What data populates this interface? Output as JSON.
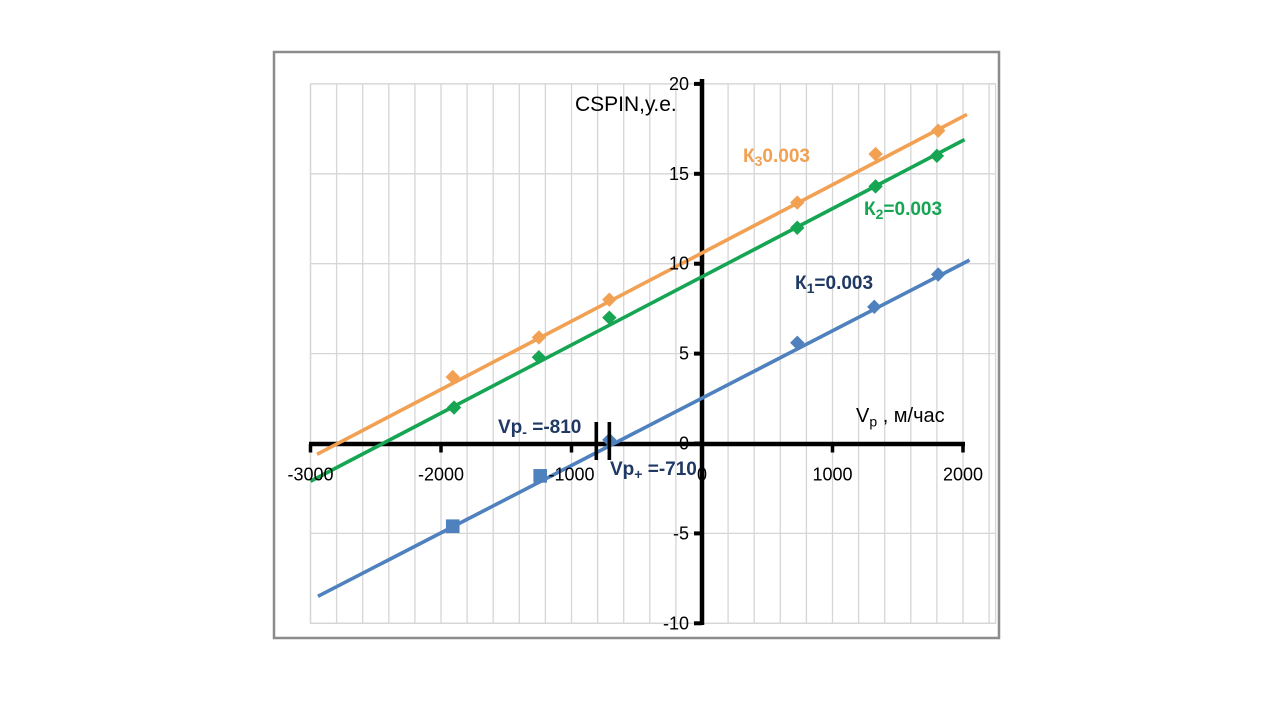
{
  "page": {
    "background": "#FFFFFF"
  },
  "chart_frame": {
    "border_color": "#8C8C8C",
    "fill": "#FFFFFF"
  },
  "chart_data": {
    "type": "scatter",
    "title": "CSPIN,у.е.",
    "ylabel": "CSPIN,у.е.",
    "xlabel_parts": {
      "pre": "V",
      "sub": "p",
      "post": " , м/час"
    },
    "xlim": [
      -3000,
      2250
    ],
    "ylim": [
      -10,
      20
    ],
    "x_minor_step": 200,
    "grid_on": true,
    "grid_color": "#D6D6D6",
    "axis_color": "#000000",
    "tick_label_color": "#000000",
    "x_ticks": [
      -3000,
      -2000,
      -1000,
      0,
      1000,
      2000
    ],
    "x_tick_labels": [
      "-3000",
      "-2000",
      "-1000",
      "0",
      "1000",
      "2000"
    ],
    "y_ticks": [
      20,
      15,
      10,
      5,
      0,
      -5,
      -10
    ],
    "y_tick_labels": [
      "20",
      "15",
      "10",
      "5",
      "0",
      "-5",
      "-10"
    ],
    "series": [
      {
        "name": "K3",
        "label_parts": {
          "pre": "К",
          "sub": "3",
          "post": "0.003"
        },
        "color": "#F2A052",
        "x": [
          -1910,
          -1250,
          -710,
          730,
          1330,
          1810
        ],
        "y": [
          3.7,
          5.9,
          8.0,
          13.4,
          16.1,
          17.4
        ],
        "markers": [
          "diamond",
          "diamond",
          "diamond",
          "diamond",
          "diamond",
          "diamond"
        ],
        "trend": {
          "x1": -2950,
          "y1": -0.6,
          "x2": 2030,
          "y2": 18.3
        }
      },
      {
        "name": "K2",
        "label_parts": {
          "pre": "К",
          "sub": "2",
          "post": "=0.003"
        },
        "color": "#16A553",
        "x": [
          -1900,
          -1250,
          -710,
          730,
          1330,
          1800
        ],
        "y": [
          2.0,
          4.8,
          7.0,
          12.0,
          14.3,
          16.0
        ],
        "markers": [
          "diamond",
          "diamond",
          "diamond",
          "diamond",
          "diamond",
          "diamond"
        ],
        "trend": {
          "x1": -3000,
          "y1": -2.1,
          "x2": 2012,
          "y2": 16.9
        }
      },
      {
        "name": "K1",
        "label_parts": {
          "pre": "К",
          "sub": "1",
          "post": "=0.003"
        },
        "color": "#4E81BD",
        "x": [
          -1910,
          -1240,
          -710,
          730,
          1320,
          1810
        ],
        "y": [
          -4.6,
          -1.8,
          0.2,
          5.6,
          7.6,
          9.4
        ],
        "markers": [
          "square",
          "square",
          "diamond",
          "diamond",
          "diamond",
          "diamond"
        ],
        "trend": {
          "x1": -2943,
          "y1": -8.5,
          "x2": 2050,
          "y2": 10.2
        }
      }
    ],
    "annotations": {
      "color": "#1F3864",
      "vp_minus": {
        "pre": "Vp",
        "sub": "-",
        "post": " =-810",
        "axis_x": -810
      },
      "vp_plus": {
        "pre": "Vp",
        "sub": "+",
        "post": " =-710",
        "axis_x": -710
      }
    },
    "legend_position": "inline-labels",
    "series_label_color_k1": "#1F3864"
  }
}
